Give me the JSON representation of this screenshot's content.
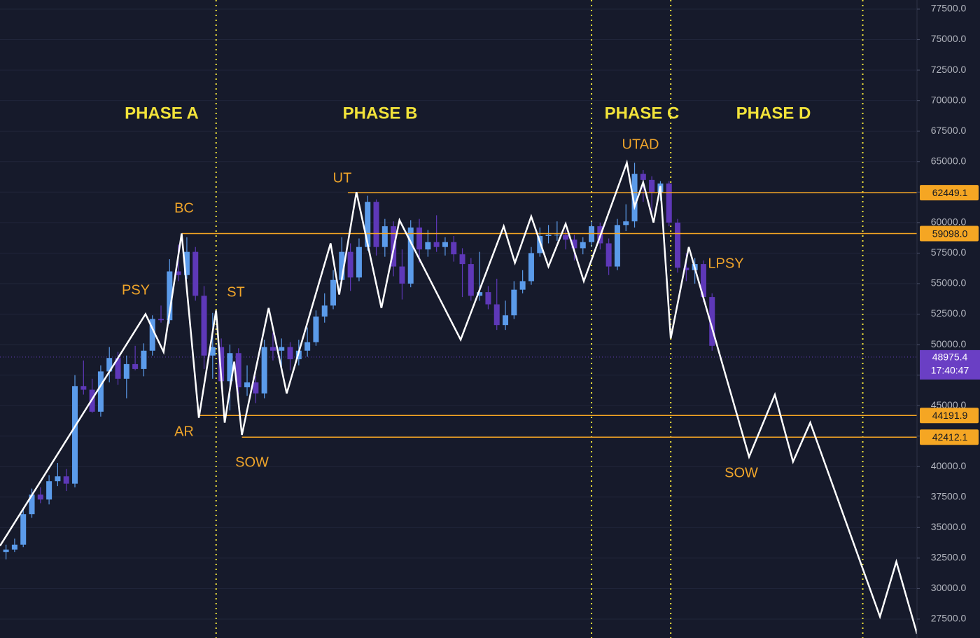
{
  "chart_data": {
    "type": "candlestick",
    "xlim": [
      -0.7,
      105.8
    ],
    "ylim": [
      25950,
      78246
    ],
    "yticks": [
      {
        "value": 27500,
        "label": "27500.0"
      },
      {
        "value": 30000,
        "label": "30000.0"
      },
      {
        "value": 32500,
        "label": "32500.0"
      },
      {
        "value": 35000,
        "label": "35000.0"
      },
      {
        "value": 37500,
        "label": "37500.0"
      },
      {
        "value": 40000,
        "label": "40000.0"
      },
      {
        "value": 42500,
        "label": "42500.0"
      },
      {
        "value": 45000,
        "label": "45000.0"
      },
      {
        "value": 47500,
        "label": "47500.0"
      },
      {
        "value": 50000,
        "label": "50000.0"
      },
      {
        "value": 52500,
        "label": "52500.0"
      },
      {
        "value": 55000,
        "label": "55000.0"
      },
      {
        "value": 57500,
        "label": "57500.0"
      },
      {
        "value": 60000,
        "label": "60000.0"
      },
      {
        "value": 62500,
        "label": "62500.0"
      },
      {
        "value": 65000,
        "label": "65000.0"
      },
      {
        "value": 67500,
        "label": "67500.0"
      },
      {
        "value": 70000,
        "label": "70000.0"
      },
      {
        "value": 72500,
        "label": "72500.0"
      },
      {
        "value": 75000,
        "label": "75000.0"
      },
      {
        "value": 77500,
        "label": "77500.0"
      }
    ],
    "grid": true,
    "up_color": "#5b9bea",
    "down_color": "#5e38b8",
    "categories": [
      null,
      null,
      null,
      null,
      null,
      null,
      null,
      null,
      null,
      null,
      null,
      null,
      null,
      null,
      null,
      null,
      null,
      null,
      null,
      null,
      null,
      null,
      null,
      null,
      null,
      null,
      null,
      null,
      null,
      null,
      null,
      null,
      null,
      null,
      null,
      null,
      null,
      null,
      null,
      null,
      null,
      null,
      null,
      null,
      null,
      null,
      null,
      null,
      null,
      null,
      null,
      null,
      null,
      null,
      null,
      null,
      null,
      null,
      null,
      null,
      null,
      null,
      null,
      null,
      null,
      null,
      null,
      null,
      null,
      null,
      null,
      null,
      null,
      null,
      null,
      null,
      null,
      null,
      null,
      null,
      null,
      null,
      null
    ],
    "ohlc": [
      [
        33000,
        33600,
        32400,
        33200
      ],
      [
        33200,
        34100,
        33000,
        33600
      ],
      [
        33600,
        36600,
        33400,
        36100
      ],
      [
        36100,
        38200,
        35800,
        37700
      ],
      [
        37700,
        38300,
        37000,
        37300
      ],
      [
        37300,
        39300,
        36900,
        38800
      ],
      [
        38800,
        40300,
        38400,
        39200
      ],
      [
        39200,
        39800,
        38000,
        38600
      ],
      [
        38600,
        47500,
        38300,
        46600
      ],
      [
        46600,
        48700,
        45900,
        46300
      ],
      [
        46300,
        47200,
        44400,
        44500
      ],
      [
        44500,
        48300,
        44100,
        47800
      ],
      [
        47800,
        49800,
        46900,
        48900
      ],
      [
        48900,
        49400,
        46700,
        47200
      ],
      [
        47200,
        49100,
        45600,
        48400
      ],
      [
        48400,
        49900,
        47900,
        48000
      ],
      [
        48000,
        50100,
        47400,
        49500
      ],
      [
        49500,
        52400,
        49100,
        52100
      ],
      [
        52100,
        53200,
        51800,
        52000
      ],
      [
        52000,
        57000,
        51700,
        56000
      ],
      [
        56000,
        58200,
        55200,
        55700
      ],
      [
        55700,
        58800,
        55400,
        57600
      ],
      [
        57600,
        58000,
        53600,
        54000
      ],
      [
        54000,
        54800,
        48000,
        49100
      ],
      [
        49100,
        52600,
        47200,
        49800
      ],
      [
        49800,
        50500,
        46400,
        47000
      ],
      [
        47000,
        50000,
        44600,
        49300
      ],
      [
        49300,
        49700,
        45900,
        46500
      ],
      [
        46500,
        48300,
        45800,
        46900
      ],
      [
        46900,
        47400,
        45200,
        46000
      ],
      [
        46000,
        50400,
        45600,
        49800
      ],
      [
        49800,
        51000,
        48700,
        49500
      ],
      [
        49500,
        50500,
        48100,
        49800
      ],
      [
        49800,
        50200,
        47900,
        48800
      ],
      [
        48800,
        50400,
        48300,
        49500
      ],
      [
        49500,
        51400,
        49000,
        50200
      ],
      [
        50200,
        52800,
        49900,
        52300
      ],
      [
        52300,
        54200,
        51800,
        53200
      ],
      [
        53200,
        56100,
        52900,
        55300
      ],
      [
        55300,
        58800,
        55000,
        57600
      ],
      [
        57600,
        58300,
        54400,
        55500
      ],
      [
        55500,
        58700,
        55200,
        58000
      ],
      [
        58000,
        62200,
        57700,
        61700
      ],
      [
        61700,
        61900,
        57300,
        58000
      ],
      [
        58000,
        60300,
        57200,
        59700
      ],
      [
        59700,
        60100,
        55600,
        56400
      ],
      [
        56400,
        57800,
        53700,
        55000
      ],
      [
        55000,
        60200,
        54700,
        59600
      ],
      [
        59600,
        60300,
        56700,
        57800
      ],
      [
        57800,
        59400,
        57200,
        58400
      ],
      [
        58400,
        60600,
        57600,
        58000
      ],
      [
        58000,
        58800,
        57300,
        58400
      ],
      [
        58400,
        58900,
        56800,
        57400
      ],
      [
        57400,
        57900,
        53900,
        56600
      ],
      [
        56600,
        57100,
        53600,
        54000
      ],
      [
        54000,
        57600,
        53600,
        54300
      ],
      [
        54300,
        54800,
        52900,
        53300
      ],
      [
        53300,
        55400,
        51200,
        51600
      ],
      [
        51600,
        53600,
        51200,
        52400
      ],
      [
        52400,
        55200,
        52100,
        54500
      ],
      [
        54500,
        56100,
        54200,
        55200
      ],
      [
        55200,
        58000,
        54900,
        57500
      ],
      [
        57500,
        59600,
        57200,
        58900
      ],
      [
        58900,
        59800,
        58300,
        59000
      ],
      [
        59000,
        60100,
        58500,
        59000
      ],
      [
        59000,
        59400,
        57800,
        58600
      ],
      [
        58600,
        59000,
        56900,
        57900
      ],
      [
        57900,
        58800,
        57400,
        58400
      ],
      [
        58400,
        60100,
        58000,
        59700
      ],
      [
        59700,
        60000,
        57800,
        58300
      ],
      [
        58300,
        58700,
        55700,
        56400
      ],
      [
        56400,
        60300,
        56100,
        59800
      ],
      [
        59800,
        61500,
        59300,
        60100
      ],
      [
        60100,
        64900,
        59600,
        64000
      ],
      [
        64000,
        64300,
        61700,
        63500
      ],
      [
        63500,
        63800,
        60900,
        62500
      ],
      [
        62500,
        63400,
        61800,
        63200
      ],
      [
        63200,
        63400,
        59700,
        60000
      ],
      [
        60000,
        60300,
        55900,
        56300
      ],
      [
        56300,
        57500,
        55200,
        56100
      ],
      [
        56100,
        57100,
        55000,
        56600
      ],
      [
        56600,
        56900,
        53500,
        53900
      ],
      [
        53900,
        54200,
        49500,
        49900
      ]
    ],
    "overlay": {
      "type": "line",
      "color": "#ffffff",
      "x": [
        -0.7,
        16.2,
        18.3,
        20.4,
        22.4,
        24.4,
        25.4,
        26.5,
        27.4,
        30.5,
        32.6,
        37.7,
        38.7,
        40.7,
        43.6,
        45.7,
        52.8,
        57.8,
        59.1,
        61.0,
        63.0,
        65.0,
        67.1,
        72.1,
        73.0,
        74.0,
        75.2,
        76.0,
        77.2,
        79.3,
        86.3,
        89.3,
        91.4,
        93.4,
        101.5,
        103.4,
        105.8
      ],
      "values": [
        33500,
        52500,
        49400,
        59100,
        44000,
        52800,
        43600,
        48600,
        42600,
        53000,
        46000,
        58300,
        54100,
        62500,
        53000,
        60200,
        50400,
        59700,
        56700,
        60500,
        56400,
        59900,
        55200,
        64900,
        61300,
        63300,
        60000,
        63000,
        50500,
        58000,
        40800,
        45900,
        40400,
        43600,
        27700,
        32200,
        26300
      ]
    },
    "levels": [
      {
        "value": 62449.1,
        "label": "62449.1",
        "x_start": 39.7
      },
      {
        "value": 59098,
        "label": "59098.0",
        "x_start": 20.4
      },
      {
        "value": 44191.9,
        "label": "44191.9",
        "x_start": 22.4
      },
      {
        "value": 42412.1,
        "label": "42412.1",
        "x_start": 27.4
      }
    ],
    "level_color": "#f5a623",
    "last_price": {
      "value": 48975.4,
      "label": "48975.4",
      "countdown": "17:40:47",
      "color": "#6a3fc4"
    },
    "phase_dividers": [
      24.4,
      68.0,
      77.2,
      99.5
    ],
    "phase_color": "#f2e33a",
    "phases": [
      "PHASE A",
      "PHASE B",
      "PHASE C",
      "PHASE D"
    ],
    "annotation_color": "#f0a52a",
    "annotations": [
      "PSY",
      "BC",
      "ST",
      "AR",
      "SOW",
      "UT",
      "UTAD",
      "LPSY",
      "SOW"
    ]
  }
}
